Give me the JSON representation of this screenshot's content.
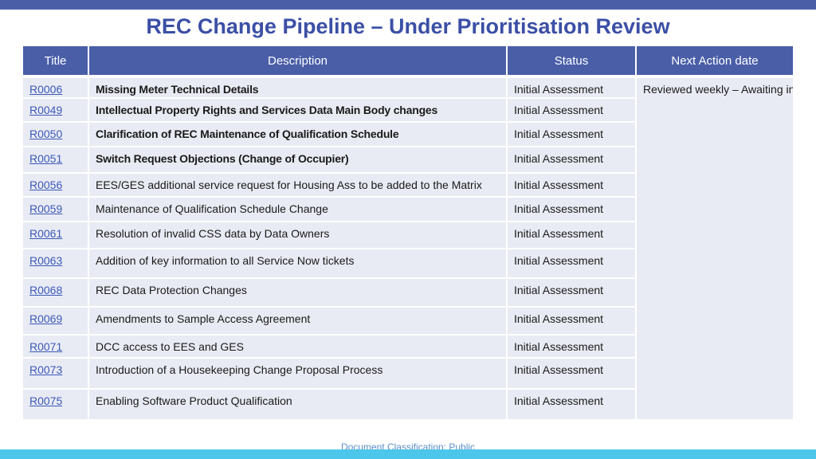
{
  "header": {
    "title": "REC Change Pipeline – Under Prioritisation Review"
  },
  "table": {
    "columns": [
      "Title",
      "Description",
      "Status",
      "Next Action date"
    ],
    "next_action": "Reviewed weekly – Awaiting instruction from REC Code Manager to progress",
    "rows": [
      {
        "id": "R0006",
        "description": "Missing Meter Technical Details",
        "status": "Initial Assessment"
      },
      {
        "id": "R0049",
        "description": "Intellectual Property Rights and Services Data Main Body changes",
        "status": "Initial Assessment"
      },
      {
        "id": "R0050",
        "description": "Clarification of REC Maintenance of Qualification Schedule",
        "status": "Initial Assessment"
      },
      {
        "id": "R0051",
        "description": "Switch Request Objections (Change of Occupier)",
        "status": "Initial Assessment"
      },
      {
        "id": "R0056",
        "description": "EES/GES additional service request for Housing Ass to be added to the Matrix",
        "status": "Initial Assessment"
      },
      {
        "id": "R0059",
        "description": "Maintenance of Qualification Schedule Change",
        "status": "Initial Assessment"
      },
      {
        "id": "R0061",
        "description": "Resolution of invalid CSS data by Data Owners",
        "status": "Initial Assessment"
      },
      {
        "id": "R0063",
        "description": "Addition of key information to all Service Now tickets",
        "status": "Initial Assessment"
      },
      {
        "id": "R0068",
        "description": "REC Data Protection Changes",
        "status": "Initial Assessment"
      },
      {
        "id": "R0069",
        "description": "Amendments to Sample Access Agreement",
        "status": "Initial Assessment"
      },
      {
        "id": "R0071",
        "description": "DCC access to EES and GES",
        "status": "Initial Assessment"
      },
      {
        "id": "R0073",
        "description": "Introduction of a Housekeeping Change Proposal Process",
        "status": "Initial Assessment"
      },
      {
        "id": "R0075",
        "description": "Enabling Software Product Qualification",
        "status": "Initial Assessment"
      }
    ]
  },
  "footer": {
    "classification": "Document Classification: Public"
  },
  "colors": {
    "header_bg": "#4a5ea8",
    "row_bg": "#e9ebf4",
    "title": "#3b4fa6",
    "link": "#3b59b8",
    "bottom_bar": "#4cc6ea"
  }
}
